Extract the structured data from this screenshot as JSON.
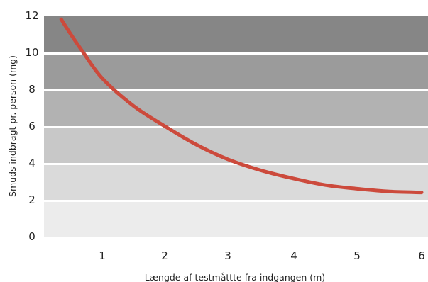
{
  "chart_data": {
    "type": "line",
    "title": "",
    "xlabel": "Længde af testmåttte fra indgangen (m)",
    "ylabel": "Smuds indbragt pr. person (mg)",
    "xlim": [
      0,
      6.1
    ],
    "ylim": [
      0,
      12
    ],
    "x_ticks": [
      "1",
      "2",
      "3",
      "4",
      "5",
      "6"
    ],
    "y_ticks": [
      "0",
      "2",
      "4",
      "6",
      "8",
      "10",
      "12"
    ],
    "grid": false,
    "background_bands": [
      {
        "from": 0,
        "to": 2,
        "color": "#ececec"
      },
      {
        "from": 2,
        "to": 4,
        "color": "#dadada"
      },
      {
        "from": 4,
        "to": 6,
        "color": "#c8c8c8"
      },
      {
        "from": 6,
        "to": 8,
        "color": "#b2b2b2"
      },
      {
        "from": 8,
        "to": 10,
        "color": "#9b9b9b"
      },
      {
        "from": 10,
        "to": 12,
        "color": "#868686"
      }
    ],
    "series": [
      {
        "color": "#cc4a3c",
        "x": [
          0.35,
          0.5,
          0.7,
          1.0,
          1.5,
          2.0,
          2.5,
          3.0,
          3.5,
          4.0,
          4.5,
          5.0,
          5.5,
          6.0
        ],
        "y": [
          11.8,
          11.0,
          10.0,
          8.6,
          7.1,
          6.0,
          5.0,
          4.2,
          3.6,
          3.15,
          2.8,
          2.6,
          2.45,
          2.4
        ]
      }
    ]
  }
}
